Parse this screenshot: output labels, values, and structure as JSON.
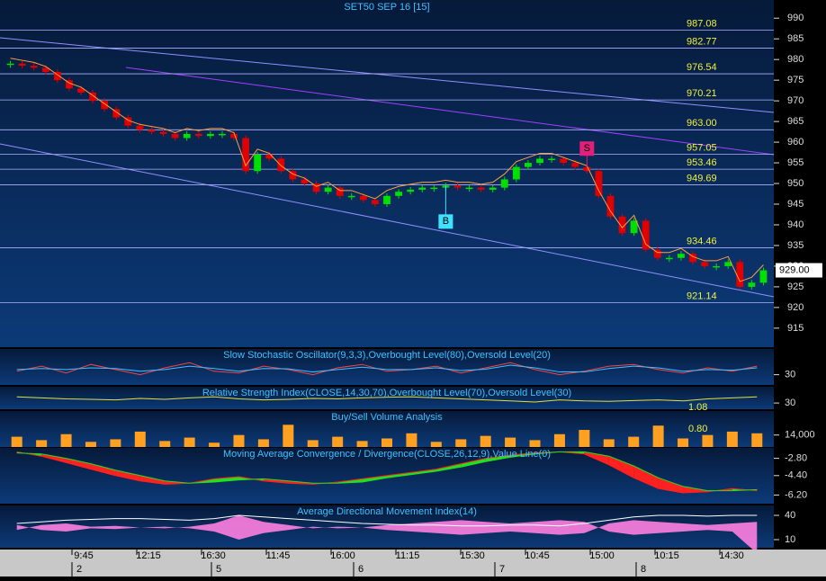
{
  "chart_data": {
    "type": "candlestick",
    "title": "SET50 SEP 16  [15]",
    "close": [
      979,
      978.5,
      978,
      977,
      975,
      973,
      972,
      970,
      968,
      966,
      964,
      963,
      962.5,
      962,
      961,
      962,
      961.5,
      962,
      962,
      961,
      953,
      957,
      956,
      953,
      951,
      950,
      948,
      949,
      947,
      947,
      946,
      945,
      947,
      948,
      948.5,
      949,
      949,
      949.5,
      949,
      949,
      948.5,
      949,
      951,
      954,
      955,
      956,
      956,
      955,
      954,
      953,
      947,
      942,
      938,
      941,
      934,
      932,
      932,
      933,
      931,
      930,
      930,
      931,
      925,
      926,
      929
    ],
    "up_color": "#00e000",
    "down_color": "#e00000",
    "ylim": [
      910.4,
      994.4
    ],
    "yticks": [
      915,
      920,
      925,
      930,
      935,
      940,
      945,
      950,
      955,
      960,
      965,
      970,
      975,
      980,
      985,
      990
    ],
    "levels": [
      987.08,
      982.77,
      976.54,
      970.21,
      963.0,
      957.05,
      953.46,
      949.69,
      934.46,
      921.14
    ],
    "level_labels": [
      "987.08",
      "982.77",
      "976.54",
      "970.21",
      "963.00",
      "957.05",
      "953.46",
      "949.69",
      "934.46",
      "921.14"
    ],
    "last_price": 929,
    "last_price_label": "929.00",
    "signals": [
      {
        "label": "S",
        "index": 49
      },
      {
        "label": "B",
        "index": 37
      }
    ],
    "time_labels": [
      "9:45",
      "12:15",
      "16:30",
      "11:45",
      "16:00",
      "11:15",
      "15:30",
      "10:45",
      "15:00",
      "10:15",
      "14:30"
    ],
    "day_labels": [
      "2",
      "5",
      "6",
      "7",
      "8"
    ],
    "indicators": [
      {
        "title": "Slow Stochastic Oscillator(9,3,3),Overbought Level(80),Oversold Level(20)",
        "ylim": [
          0,
          100
        ],
        "yticks": [
          30
        ],
        "series": [
          {
            "name": "%K",
            "color": "#ff4040",
            "values": [
              40,
              55,
              35,
              60,
              45,
              30,
              50,
              65,
              40,
              35,
              55,
              45,
              30,
              50,
              60,
              40,
              45,
              55,
              35,
              50,
              65,
              45,
              30,
              40,
              55,
              60,
              45,
              35,
              50,
              40,
              55
            ]
          },
          {
            "name": "%D",
            "color": "#40c0ff",
            "values": [
              45,
              48,
              45,
              50,
              48,
              40,
              45,
              55,
              48,
              40,
              48,
              47,
              38,
              45,
              52,
              45,
              45,
              50,
              42,
              46,
              58,
              50,
              38,
              38,
              48,
              55,
              50,
              40,
              45,
              43,
              50
            ]
          }
        ]
      },
      {
        "title": "Relative Strength Index(CLOSE,14,30,70),Overbought Level(70),Oversold Level(30)",
        "ylim": [
          0,
          100
        ],
        "yticks": [
          30
        ],
        "series": [
          {
            "name": "RSI",
            "color": "#e0e040",
            "values": [
              60,
              55,
              50,
              48,
              45,
              52,
              48,
              55,
              60,
              50,
              45,
              48,
              52,
              50,
              55,
              58,
              60,
              55,
              50,
              45,
              40,
              35,
              45,
              40,
              38,
              42,
              45,
              40,
              50,
              55,
              60
            ]
          }
        ]
      },
      {
        "title": "Buy/Sell Volume Analysis",
        "ylim": [
          0,
          40000
        ],
        "yticks": [
          {
            "value": 14000,
            "label": "14,000"
          }
        ],
        "annotations": [
          "1.08",
          "0.80"
        ],
        "annotation_values": [
          1.08,
          0.8
        ],
        "series": [
          {
            "name": "Volume",
            "color": "#ffa020",
            "values": [
              12000,
              8000,
              15000,
              6000,
              9000,
              18000,
              7000,
              11000,
              5000,
              14000,
              9000,
              26000,
              8000,
              12000,
              7000,
              10000,
              16000,
              6000,
              9000,
              13000,
              11000,
              8000,
              15000,
              20000,
              9000,
              12000,
              25000,
              10000,
              14000,
              18000,
              16000
            ]
          }
        ]
      },
      {
        "title": "Moving Average Convergence / Divergence(CLOSE,26,12,9),Value Line(0)",
        "ylim": [
          -7,
          -2
        ],
        "yticks": [
          {
            "value": -2.8,
            "label": "-2.80"
          },
          {
            "value": -4.4,
            "label": "-4.40"
          },
          {
            "value": -6.2,
            "label": "-6.20"
          }
        ],
        "series": [
          {
            "name": "MACD",
            "color": "#ff2020",
            "values": [
              -2.2,
              -2.6,
              -3.2,
              -3.8,
              -4.4,
              -4.9,
              -5.2,
              -5.1,
              -4.7,
              -4.5,
              -4.9,
              -5.1,
              -5.2,
              -5.0,
              -4.7,
              -4.4,
              -4.1,
              -3.8,
              -3.3,
              -2.8,
              -2.5,
              -2.3,
              -2.2,
              -2.4,
              -3.4,
              -4.6,
              -5.6,
              -6.0,
              -5.9,
              -5.6,
              -5.8
            ]
          },
          {
            "name": "Signal",
            "color": "#20e020",
            "values": [
              -2.3,
              -2.4,
              -2.8,
              -3.3,
              -3.9,
              -4.4,
              -4.9,
              -5.1,
              -5.0,
              -4.8,
              -4.7,
              -4.9,
              -5.1,
              -5.1,
              -5.0,
              -4.6,
              -4.3,
              -4.0,
              -3.6,
              -3.1,
              -2.7,
              -2.4,
              -2.2,
              -2.2,
              -2.6,
              -3.5,
              -4.6,
              -5.4,
              -5.8,
              -5.8,
              -5.7
            ]
          }
        ]
      },
      {
        "title": "Average Directional Movement Index(14)",
        "ylim": [
          0,
          50
        ],
        "yticks": [
          40,
          10
        ],
        "series": [
          {
            "name": "ADX",
            "color": "#ff80e0",
            "values": [
              22,
              28,
              30,
              26,
              27,
              25,
              24,
              26,
              30,
              40,
              32,
              28,
              24,
              26,
              25,
              22,
              20,
              18,
              16,
              18,
              20,
              18,
              16,
              18,
              30,
              34,
              32,
              30,
              28,
              30,
              32
            ]
          },
          {
            "name": "DI",
            "color": "#ffffff",
            "values": [
              30,
              32,
              34,
              35,
              36,
              36,
              35,
              34,
              36,
              40,
              38,
              36,
              34,
              32,
              30,
              29,
              28,
              28,
              27,
              27,
              28,
              28,
              27,
              30,
              34,
              38,
              40,
              40,
              39,
              40,
              40
            ]
          }
        ]
      }
    ]
  }
}
